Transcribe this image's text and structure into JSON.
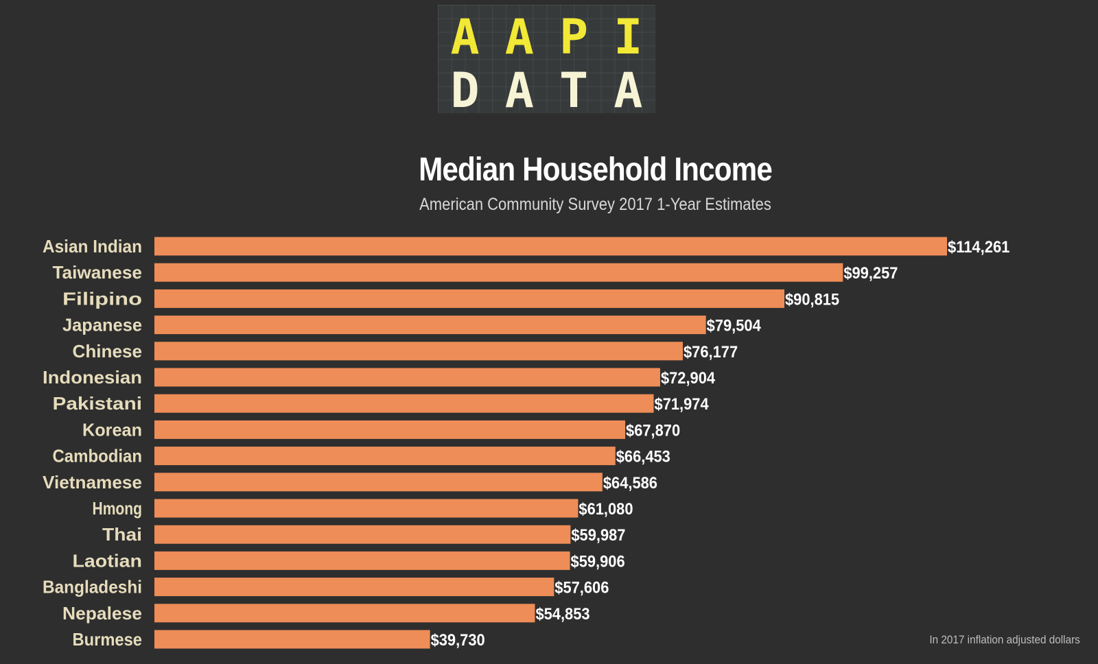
{
  "logo": {
    "line1": [
      "A",
      "A",
      "P",
      "I"
    ],
    "line2": [
      "D",
      "A",
      "T",
      "A"
    ],
    "text": "AAPI DATA"
  },
  "chart_data": {
    "type": "bar",
    "orientation": "horizontal",
    "title": "Median Household Income",
    "subtitle": "American Community Survey 2017 1-Year Estimates",
    "note": "In 2017 inflation adjusted dollars",
    "categories": [
      "Asian Indian",
      "Taiwanese",
      "Filipino",
      "Japanese",
      "Chinese",
      "Indonesian",
      "Pakistani",
      "Korean",
      "Cambodian",
      "Vietnamese",
      "Hmong",
      "Thai",
      "Laotian",
      "Bangladeshi",
      "Nepalese",
      "Burmese"
    ],
    "values": [
      114261,
      99257,
      90815,
      79504,
      76177,
      72904,
      71974,
      67870,
      66453,
      64586,
      61080,
      59987,
      59906,
      57606,
      54853,
      39730
    ],
    "labels": [
      "$114,261",
      "$99,257",
      "$90,815",
      "$79,504",
      "$76,177",
      "$72,904",
      "$71,974",
      "$67,870",
      "$66,453",
      "$64,586",
      "$61,080",
      "$59,987",
      "$59,906",
      "$57,606",
      "$54,853",
      "$39,730"
    ],
    "xlim": [
      0,
      114261
    ],
    "grid": false,
    "colors": {
      "bar": "#ee8d57",
      "background": "#2e2e2e",
      "category_label": "#e6dcbc",
      "value_label": "#ffffff"
    }
  }
}
